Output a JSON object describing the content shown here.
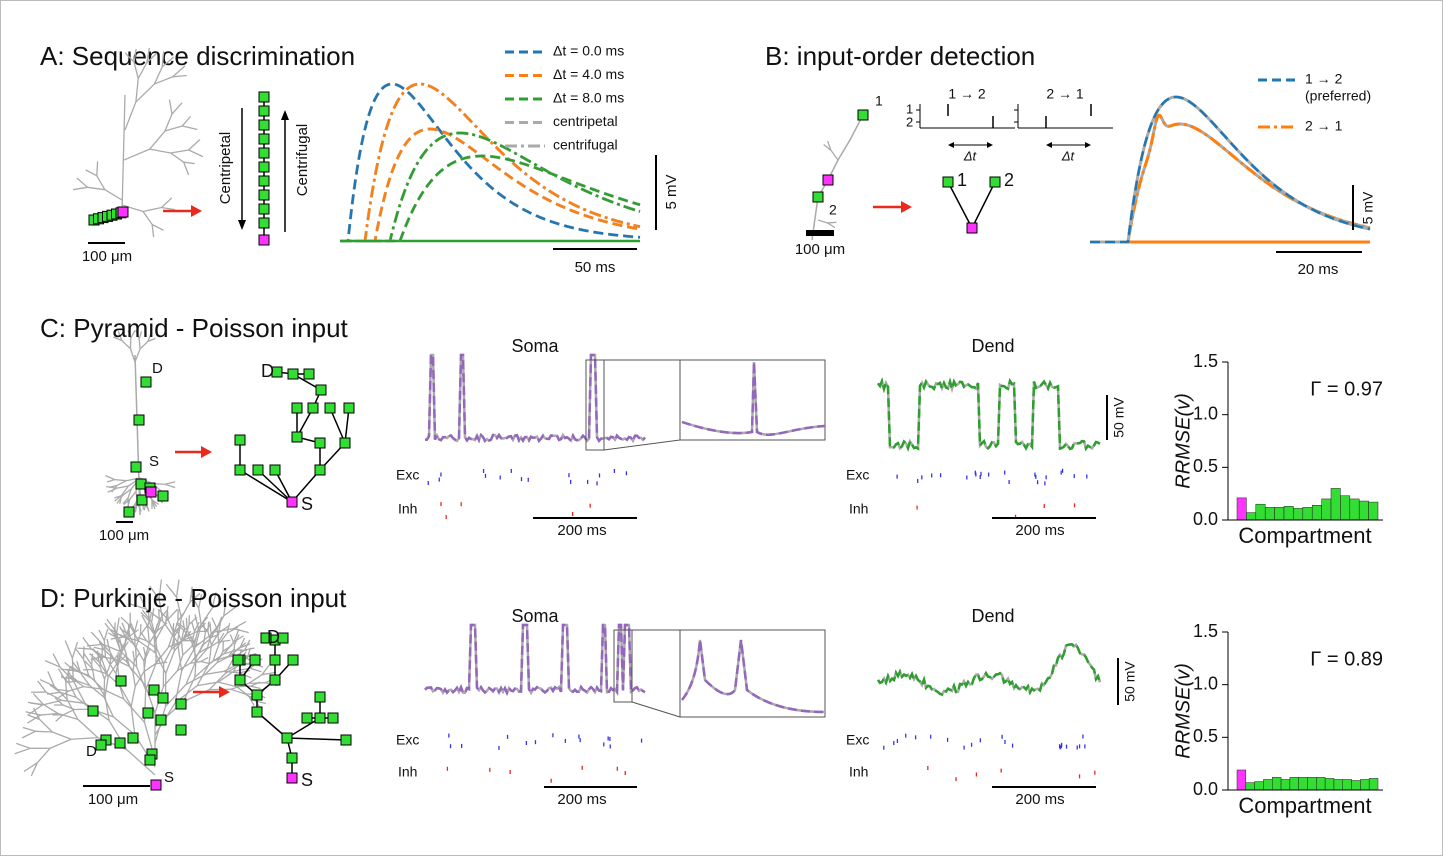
{
  "panel_a": {
    "title": "A: Sequence discrimination",
    "morphology_scale": "100 μm",
    "arrows": [
      "Centripetal",
      "Centrifugal"
    ],
    "legend": [
      "Δt = 0.0 ms",
      "Δt = 4.0 ms",
      "Δt = 8.0 ms",
      "centripetal",
      "centrifugal"
    ],
    "voltage_scale": "5 mV",
    "time_scale": "50  ms"
  },
  "panel_b": {
    "title": "B: input-order detection",
    "site_labels": [
      "1",
      "2"
    ],
    "orders": [
      "1 → 2",
      "2 → 1"
    ],
    "delta_t": "Δt",
    "morphology_scale": "100 μm",
    "legend": [
      "1 → 2",
      "(preferred)",
      "2 → 1"
    ],
    "voltage_scale": "5 mV",
    "time_scale": "20  ms"
  },
  "panel_c": {
    "title": "C: Pyramid - Poisson input",
    "site_labels": [
      "D",
      "S"
    ],
    "morphology_scale": "100 μm",
    "traces": [
      "Soma",
      "Dend"
    ],
    "raster_labels": [
      "Exc",
      "Inh"
    ],
    "time_scale": "200  ms",
    "voltage_scale": "50 mV",
    "rrmse": {
      "type": "bar",
      "y_label": "RRMSE(v)",
      "x_label": "Compartment",
      "annotation": "Γ = 0.97",
      "ylim": [
        0,
        1.5
      ],
      "yticks": [
        {
          "value": 0,
          "label": "0.0"
        },
        0.5,
        {
          "value": 1,
          "label": "1.0"
        },
        1.5
      ],
      "values": [
        0.21,
        0.07,
        0.15,
        0.12,
        0.12,
        0.13,
        0.11,
        0.12,
        0.14,
        0.2,
        0.3,
        0.23,
        0.2,
        0.18,
        0.17
      ],
      "colors": [
        "#ff33ff",
        "#33dd33",
        "#33dd33",
        "#33dd33",
        "#33dd33",
        "#33dd33",
        "#33dd33",
        "#33dd33",
        "#33dd33",
        "#33dd33",
        "#33dd33",
        "#33dd33",
        "#33dd33",
        "#33dd33",
        "#33dd33"
      ]
    }
  },
  "panel_d": {
    "title": "D: Purkinje - Poisson input",
    "site_labels": [
      "D",
      "S"
    ],
    "morphology_scale": "100 μm",
    "traces": [
      "Soma",
      "Dend"
    ],
    "raster_labels": [
      "Exc",
      "Inh"
    ],
    "time_scale": "200  ms",
    "voltage_scale": "50 mV",
    "rrmse": {
      "type": "bar",
      "y_label": "RRMSE(v)",
      "x_label": "Compartment",
      "annotation": "Γ = 0.89",
      "ylim": [
        0,
        1.5
      ],
      "yticks": [
        {
          "value": 0,
          "label": "0.0"
        },
        0.5,
        {
          "value": 1,
          "label": "1.0"
        },
        1.5
      ],
      "values": [
        0.19,
        0.07,
        0.08,
        0.1,
        0.12,
        0.1,
        0.12,
        0.12,
        0.12,
        0.12,
        0.11,
        0.1,
        0.1,
        0.09,
        0.1,
        0.11
      ],
      "colors": [
        "#ff33ff",
        "#33dd33",
        "#33dd33",
        "#33dd33",
        "#33dd33",
        "#33dd33",
        "#33dd33",
        "#33dd33",
        "#33dd33",
        "#33dd33",
        "#33dd33",
        "#33dd33",
        "#33dd33",
        "#33dd33",
        "#33dd33",
        "#33dd33"
      ]
    }
  }
}
